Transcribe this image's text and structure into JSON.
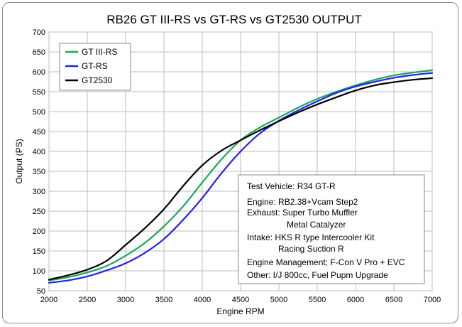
{
  "chart_data": {
    "type": "line",
    "title": "RB26 GT III-RS vs GT-RS vs GT2530 OUTPUT",
    "xlabel": "Engine RPM",
    "ylabel": "Output (PS)",
    "xlim": [
      2000,
      7000
    ],
    "ylim": [
      50,
      700
    ],
    "x_ticks": [
      "2000",
      "2500",
      "3000",
      "3500",
      "4000",
      "4500",
      "5000",
      "5500",
      "6000",
      "6500",
      "7000"
    ],
    "y_ticks": [
      "50",
      "100",
      "150",
      "200",
      "250",
      "300",
      "350",
      "400",
      "450",
      "500",
      "550",
      "600",
      "650",
      "700"
    ],
    "grid": true,
    "legend_position": "top-left",
    "x": [
      2000,
      2250,
      2500,
      2750,
      3000,
      3250,
      3500,
      3750,
      4000,
      4250,
      4500,
      4750,
      5000,
      5250,
      5500,
      5750,
      6000,
      6250,
      6500,
      6750,
      7000
    ],
    "series": [
      {
        "name": "GT III-RS",
        "color": "#1aaa55",
        "values": [
          76,
          84,
          96,
          112,
          138,
          170,
          212,
          262,
          322,
          380,
          428,
          460,
          485,
          510,
          532,
          550,
          566,
          580,
          591,
          598,
          604
        ]
      },
      {
        "name": "GT-RS",
        "color": "#2222ee",
        "values": [
          70,
          76,
          86,
          101,
          119,
          145,
          180,
          228,
          283,
          345,
          400,
          445,
          477,
          503,
          526,
          547,
          563,
          575,
          585,
          592,
          597
        ]
      },
      {
        "name": "GT2530",
        "color": "#000000",
        "values": [
          78,
          89,
          103,
          125,
          165,
          207,
          255,
          313,
          365,
          402,
          428,
          453,
          476,
          498,
          518,
          536,
          553,
          566,
          574,
          580,
          584
        ]
      }
    ],
    "annotation_lines": [
      "Test Vehicle: R34 GT-R",
      "Engine: RB2.38+Vcam Step2",
      "Exhaust: Super Turbo Muffler",
      "Metal Catalyzer",
      "Intake: HKS R type Intercooler Kit",
      "Racing Suction R",
      "Engine Management; F-Con V Pro + EVC",
      "Other: I/J 800cc, Fuel Pupm Upgrade"
    ]
  }
}
